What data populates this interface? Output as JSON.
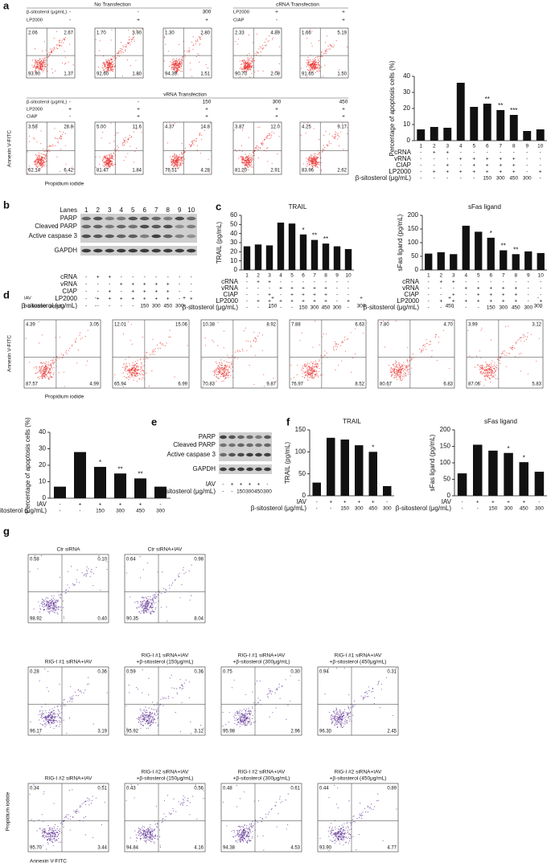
{
  "panel_labels": [
    "a",
    "b",
    "c",
    "d",
    "e",
    "f",
    "g"
  ],
  "flow": [
    {
      "title": "No Transfection",
      "condition_names": [
        "β-sitosterol (μg/mL)",
        "LP2000"
      ],
      "plots": [
        {
          "conditions": [
            "-",
            "-"
          ],
          "quadrants": [
            "2.06",
            "2.67",
            "93.90",
            "1.37"
          ]
        },
        {
          "conditions": [
            "-",
            "+"
          ],
          "quadrants": [
            "1.70",
            "3.90",
            "92.60",
            "1.80"
          ]
        },
        {
          "conditions": [
            "300",
            "+"
          ],
          "quadrants": [
            "1.30",
            "2.80",
            "94.39",
            "1.51"
          ]
        }
      ]
    },
    {
      "title": "cRNA Transfection",
      "condition_names": [
        "LP2000",
        "CIAP"
      ],
      "plots": [
        {
          "conditions": [
            "+",
            "-"
          ],
          "quadrants": [
            "2.33",
            "4.89",
            "90.70",
            "2.08"
          ]
        },
        {
          "conditions": [
            "+",
            "+"
          ],
          "quadrants": [
            "1.66",
            "5.19",
            "91.65",
            "1.50"
          ]
        }
      ]
    },
    {
      "title": "vRNA Transfection",
      "condition_names": [
        "β-sitosterol (μg/mL)",
        "LP2000",
        "CIAP"
      ],
      "y_label": "Annexin V-FITC",
      "x_label": "Propidium iodide",
      "plots": [
        {
          "conditions": [
            "-",
            "+",
            "-"
          ],
          "quadrants": [
            "3.58",
            "28.8",
            "62.14",
            "6.42"
          ]
        },
        {
          "conditions": [
            "-",
            "+",
            "+"
          ],
          "quadrants": [
            "5.00",
            "11.6",
            "81.47",
            "1.84"
          ]
        },
        {
          "conditions": [
            "150",
            "+",
            "+"
          ],
          "quadrants": [
            "4.37",
            "14.8",
            "76.51",
            "4.28"
          ]
        },
        {
          "conditions": [
            "300",
            "+",
            "+"
          ],
          "quadrants": [
            "3.87",
            "12.0",
            "81.20",
            "2.91"
          ]
        },
        {
          "conditions": [
            "450",
            "+",
            "+"
          ],
          "quadrants": [
            "4.25",
            "9.17",
            "83.96",
            "2.62"
          ]
        }
      ]
    },
    {
      "condition_names": [
        "IAV",
        "β-sitosterol (μg/mL)"
      ],
      "y_label": "Annexin V-FITC",
      "x_label": "Propidium iodide",
      "plots": [
        {
          "conditions": [
            "-",
            "-"
          ],
          "quadrants": [
            "4.39",
            "3.05",
            "87.57",
            "4.99"
          ]
        },
        {
          "conditions": [
            "+",
            "-"
          ],
          "quadrants": [
            "12.01",
            "15.06",
            "65.94",
            "6.99"
          ]
        },
        {
          "conditions": [
            "+",
            "150"
          ],
          "quadrants": [
            "10.38",
            "8.92",
            "70.83",
            "9.87"
          ]
        },
        {
          "conditions": [
            "+",
            "300"
          ],
          "quadrants": [
            "7.88",
            "6.63",
            "76.97",
            "8.52"
          ]
        },
        {
          "conditions": [
            "+",
            "450"
          ],
          "quadrants": [
            "7.80",
            "4.70",
            "80.67",
            "6.83"
          ]
        },
        {
          "conditions": [
            "-",
            "300"
          ],
          "quadrants": [
            "3.99",
            "3.12",
            "87.06",
            "5.83"
          ]
        }
      ]
    },
    {
      "y_label": "Propidium iodide",
      "x_label": "Annexin V-FITC",
      "plots": [
        {
          "title": [
            "Ctr siRNA"
          ],
          "quadrants": [
            "0.58",
            "0.10",
            "98.92",
            "0.40"
          ]
        },
        {
          "title": [
            "Ctr siRNA+IAV"
          ],
          "quadrants": [
            "0.64",
            "0.98",
            "90.35",
            "8.04"
          ]
        },
        {
          "title": [
            "RIG-I #1 siRNA+IAV"
          ],
          "quadrants": [
            "0.28",
            "0.36",
            "96.17",
            "3.19"
          ]
        },
        {
          "title": [
            "RIG-I #1 siRNA+IAV",
            "+β-sitosterol (150μg/mL)"
          ],
          "quadrants": [
            "0.59",
            "0.36",
            "95.92",
            "3.12"
          ]
        },
        {
          "title": [
            "RIG-I #1 siRNA+IAV",
            "+β-sitosterol (300μg/mL)"
          ],
          "quadrants": [
            "0.75",
            "0.30",
            "95.98",
            "2.96"
          ]
        },
        {
          "title": [
            "RIG-I #1 siRNA+IAV",
            "+β-sitosterol (450μg/mL)"
          ],
          "quadrants": [
            "0.94",
            "0.31",
            "96.30",
            "2.45"
          ]
        },
        {
          "title": [
            "RIG-I #2 siRNA+IAV"
          ],
          "quadrants": [
            "0.34",
            "0.51",
            "95.70",
            "3.44"
          ]
        },
        {
          "title": [
            "RIG-I #2 siRNA+IAV",
            "+β-sitosterol (150μg/mL)"
          ],
          "quadrants": [
            "0.43",
            "0.56",
            "94.84",
            "4.16"
          ]
        },
        {
          "title": [
            "RIG-I #2 siRNA+IAV",
            "+β-sitosterol (300μg/mL)"
          ],
          "quadrants": [
            "0.48",
            "0.61",
            "94.38",
            "4.53"
          ]
        },
        {
          "title": [
            "RIG-I #2 siRNA+IAV",
            "+β-sitosterol (450μg/mL)"
          ],
          "quadrants": [
            "0.44",
            "0.89",
            "93.90",
            "4.77"
          ]
        }
      ]
    }
  ],
  "blots": [
    {
      "lanes_label": "Lanes",
      "lanes": [
        "1",
        "2",
        "3",
        "4",
        "5",
        "6",
        "7",
        "8",
        "9",
        "10"
      ],
      "bands": [
        "PARP",
        "Cleaved PARP",
        "Active caspase 3",
        "GAPDH"
      ],
      "conditions": [
        {
          "name": "cRNA",
          "values": [
            "-",
            "+",
            "+",
            "-",
            "-",
            "-",
            "-",
            "-",
            "-",
            "-"
          ]
        },
        {
          "name": "vRNA",
          "values": [
            "-",
            "-",
            "-",
            "+",
            "+",
            "+",
            "+",
            "+",
            "-",
            "-"
          ]
        },
        {
          "name": "CIAP",
          "values": [
            "-",
            "-",
            "+",
            "-",
            "+",
            "+",
            "+",
            "+",
            "-",
            "-"
          ]
        },
        {
          "name": "LP2000",
          "values": [
            "-",
            "+",
            "+",
            "+",
            "+",
            "+",
            "+",
            "+",
            "-",
            "+"
          ]
        },
        {
          "name": "β-sitosterol (μg/mL)",
          "values": [
            "-",
            "-",
            "-",
            "-",
            "-",
            "150",
            "300",
            "450",
            "300",
            "-"
          ]
        }
      ]
    },
    {
      "bands": [
        "PARP",
        "Cleaved PARP",
        "Active caspase 3",
        "GAPDH"
      ],
      "conditions": [
        {
          "name": "IAV",
          "values": [
            "-",
            "+",
            "+",
            "+",
            "+",
            "-"
          ]
        },
        {
          "name": "β-sitosterol (μg/mL)",
          "values": [
            "-",
            "-",
            "150",
            "300",
            "450",
            "300"
          ]
        }
      ]
    }
  ],
  "chart_data": [
    {
      "type": "bar",
      "y_label": "Percentage of apoptosis cells (%)",
      "color": "#111111",
      "categories": [
        "1",
        "2",
        "3",
        "4",
        "5",
        "6",
        "7",
        "8",
        "9",
        "10"
      ],
      "values": [
        7,
        8.5,
        8,
        36,
        21,
        23,
        19,
        16,
        6,
        7
      ],
      "significance": [
        null,
        null,
        null,
        null,
        null,
        "**",
        "**",
        "***",
        null,
        null
      ],
      "ylim": [
        0,
        40
      ],
      "yticks": [
        0,
        10,
        20,
        30,
        40
      ],
      "conditions": [
        {
          "name": "cRNA",
          "values": [
            "-",
            "+",
            "+",
            "-",
            "-",
            "-",
            "-",
            "-",
            "-",
            "-"
          ]
        },
        {
          "name": "vRNA",
          "values": [
            "-",
            "-",
            "-",
            "+",
            "+",
            "+",
            "+",
            "+",
            "-",
            "-"
          ]
        },
        {
          "name": "CIAP",
          "values": [
            "-",
            "-",
            "+",
            "-",
            "+",
            "+",
            "+",
            "+",
            "-",
            "-"
          ]
        },
        {
          "name": "LP2000",
          "values": [
            "-",
            "+",
            "+",
            "+",
            "+",
            "+",
            "+",
            "+",
            "-",
            "+"
          ]
        },
        {
          "name": "β-sitosterol (μg/mL)",
          "values": [
            "-",
            "-",
            "-",
            "-",
            "-",
            "150",
            "300",
            "450",
            "300",
            "-"
          ]
        }
      ]
    },
    {
      "type": "bar",
      "title": "TRAIL",
      "y_label": "TRAIL (pg/mL)",
      "color": "#111111",
      "categories": [
        "1",
        "2",
        "3",
        "4",
        "5",
        "6",
        "7",
        "8",
        "9",
        "10"
      ],
      "values": [
        26,
        28,
        27,
        52,
        51,
        39,
        33,
        29,
        26,
        23
      ],
      "significance": [
        null,
        null,
        null,
        null,
        null,
        "*",
        "**",
        "**",
        null,
        null
      ],
      "ylim": [
        0,
        60
      ],
      "yticks": [
        0,
        10,
        20,
        30,
        40,
        50,
        60
      ],
      "conditions": [
        {
          "name": "cRNA",
          "values": [
            "-",
            "+",
            "+",
            "-",
            "-",
            "-",
            "-",
            "-",
            "-",
            "-"
          ]
        },
        {
          "name": "vRNA",
          "values": [
            "-",
            "-",
            "-",
            "+",
            "+",
            "+",
            "+",
            "+",
            "-",
            "-"
          ]
        },
        {
          "name": "CIAP",
          "values": [
            "-",
            "-",
            "+",
            "-",
            "+",
            "+",
            "+",
            "+",
            "-",
            "-"
          ]
        },
        {
          "name": "LP2000",
          "values": [
            "-",
            "+",
            "+",
            "+",
            "+",
            "+",
            "+",
            "+",
            "-",
            "+"
          ]
        },
        {
          "name": "β-sitosterol (μg/mL)",
          "values": [
            "-",
            "-",
            "-",
            "-",
            "-",
            "150",
            "300",
            "450",
            "300",
            "-"
          ]
        }
      ]
    },
    {
      "type": "bar",
      "title": "sFas ligand",
      "y_label": "sFas ligand (pg/mL)",
      "color": "#111111",
      "categories": [
        "1",
        "2",
        "3",
        "4",
        "5",
        "6",
        "7",
        "8",
        "9",
        "10"
      ],
      "values": [
        60,
        65,
        58,
        162,
        140,
        118,
        72,
        58,
        68,
        62
      ],
      "significance": [
        null,
        null,
        null,
        null,
        null,
        "*",
        "**",
        "**",
        null,
        null
      ],
      "ylim": [
        0,
        200
      ],
      "yticks": [
        0,
        50,
        100,
        150,
        200
      ],
      "conditions": [
        {
          "name": "cRNA",
          "values": [
            "-",
            "+",
            "+",
            "-",
            "-",
            "-",
            "-",
            "-",
            "-",
            "-"
          ]
        },
        {
          "name": "vRNA",
          "values": [
            "-",
            "-",
            "-",
            "+",
            "+",
            "+",
            "+",
            "+",
            "-",
            "-"
          ]
        },
        {
          "name": "CIAP",
          "values": [
            "-",
            "-",
            "+",
            "-",
            "+",
            "+",
            "+",
            "+",
            "-",
            "-"
          ]
        },
        {
          "name": "LP2000",
          "values": [
            "-",
            "+",
            "+",
            "+",
            "+",
            "+",
            "+",
            "+",
            "-",
            "+"
          ]
        },
        {
          "name": "β-sitosterol (μg/mL)",
          "values": [
            "-",
            "-",
            "-",
            "-",
            "-",
            "150",
            "300",
            "450",
            "300",
            "-"
          ]
        }
      ]
    },
    {
      "type": "bar",
      "y_label": "Percentage of apoptosis cells (%)",
      "color": "#111111",
      "values": [
        7,
        28,
        19,
        15,
        12,
        7
      ],
      "significance": [
        null,
        null,
        "*",
        "**",
        "**",
        null
      ],
      "ylim": [
        0,
        40
      ],
      "yticks": [
        0,
        10,
        20,
        30,
        40
      ],
      "conditions": [
        {
          "name": "IAV",
          "values": [
            "-",
            "+",
            "+",
            "+",
            "+",
            "-"
          ]
        },
        {
          "name": "β-sitosterol (μg/mL)",
          "values": [
            "-",
            "-",
            "150",
            "300",
            "450",
            "300"
          ]
        }
      ]
    },
    {
      "type": "bar",
      "title": "TRAIL",
      "y_label": "TRAIL (pg/mL)",
      "color": "#111111",
      "values": [
        30,
        132,
        128,
        115,
        100,
        22
      ],
      "significance": [
        null,
        null,
        null,
        null,
        "*",
        null
      ],
      "ylim": [
        0,
        150
      ],
      "yticks": [
        0,
        50,
        100,
        150
      ],
      "conditions": [
        {
          "name": "IAV",
          "values": [
            "-",
            "+",
            "+",
            "+",
            "+",
            "-"
          ]
        },
        {
          "name": "β-sitosterol (μg/mL)",
          "values": [
            "-",
            "-",
            "150",
            "300",
            "450",
            "300"
          ]
        }
      ]
    },
    {
      "type": "bar",
      "title": "sFas ligand",
      "y_label": "sFas ligand (pg/mL)",
      "color": "#111111",
      "values": [
        68,
        155,
        137,
        130,
        102,
        73
      ],
      "significance": [
        null,
        null,
        null,
        "*",
        "*",
        null
      ],
      "ylim": [
        0,
        200
      ],
      "yticks": [
        0,
        50,
        100,
        150,
        200
      ],
      "conditions": [
        {
          "name": "IAV",
          "values": [
            "-",
            "+",
            "+",
            "+",
            "+",
            "-"
          ]
        },
        {
          "name": "β-sitosterol (μg/mL)",
          "values": [
            "-",
            "-",
            "150",
            "300",
            "450",
            "300"
          ]
        }
      ]
    }
  ]
}
